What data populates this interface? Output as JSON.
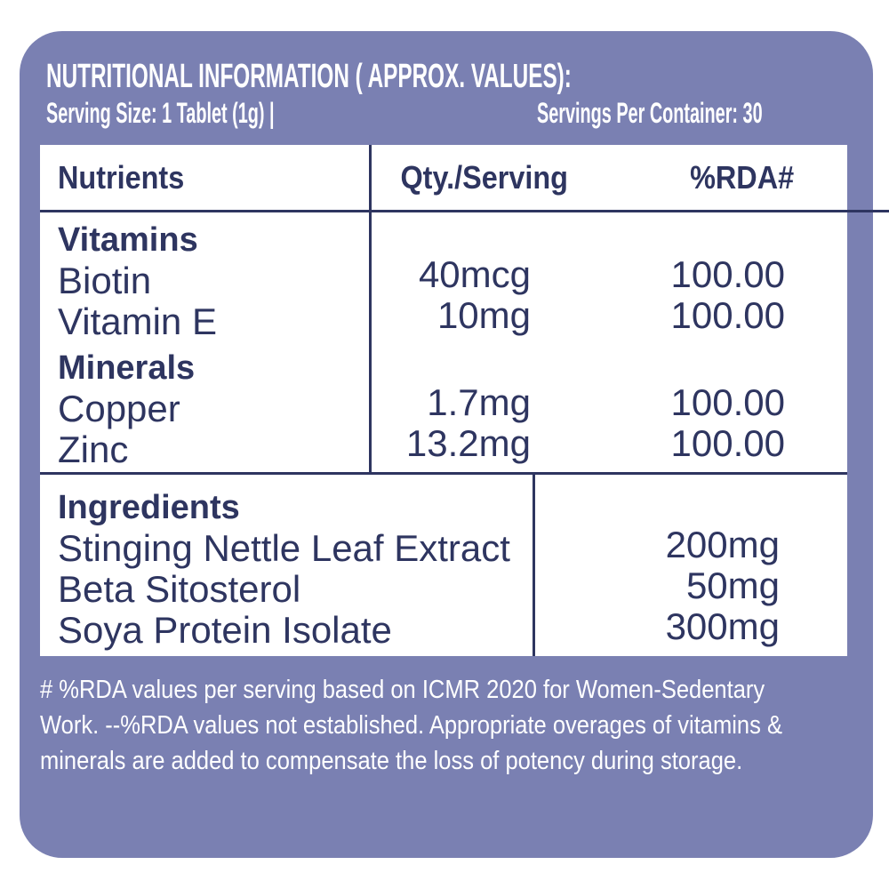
{
  "label": {
    "title": "NUTRITIONAL INFORMATION ( APPROX. VALUES):",
    "serving_size": "Serving Size: 1 Tablet (1g) |",
    "servings_per_container": "Servings Per Container: 30"
  },
  "table": {
    "headers": [
      "Nutrients",
      "Qty./Serving",
      "%RDA#"
    ],
    "sections": [
      {
        "heading": "Vitamins",
        "rows": [
          {
            "name": "Biotin",
            "qty": "40mcg",
            "rda": "100.00"
          },
          {
            "name": "Vitamin E",
            "qty": "10mg",
            "rda": "100.00"
          }
        ]
      },
      {
        "heading": "Minerals",
        "rows": [
          {
            "name": "Copper",
            "qty": "1.7mg",
            "rda": "100.00"
          },
          {
            "name": "Zinc",
            "qty": "13.2mg",
            "rda": "100.00"
          }
        ]
      }
    ]
  },
  "ingredients": {
    "heading": "Ingredients",
    "rows": [
      {
        "name": "Stinging Nettle Leaf Extract",
        "qty": "200mg"
      },
      {
        "name": "Beta Sitosterol",
        "qty": "50mg"
      },
      {
        "name": "Soya Protein Isolate",
        "qty": "300mg"
      }
    ]
  },
  "footnote": {
    "lines": [
      "# %RDA values per serving based on ICMR 2020 for Women-Sedentary",
      "Work. --%RDA values not established. Appropriate overages of vitamins &",
      "minerals are added to compensate the loss of potency during storage."
    ]
  },
  "colors": {
    "card_background": "#7a80b2",
    "ink": "#2e3560",
    "paper": "#ffffff",
    "header_text": "#ffffff"
  }
}
